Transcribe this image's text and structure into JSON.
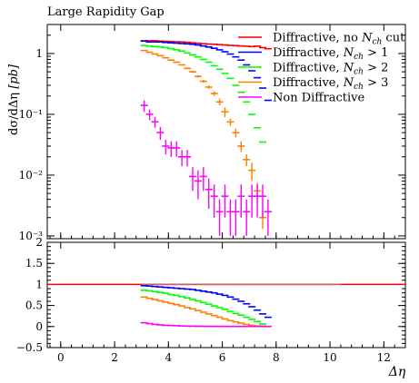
{
  "chart_data": {
    "type": "scatter",
    "title": "Large Rapidity Gap",
    "xlabel": "Δη",
    "ylabel": "dσ/dΔη [pb]",
    "xlim": [
      -0.5,
      12.8
    ],
    "ylim": [
      0.0009,
      3.0
    ],
    "yscale": "log",
    "grid": false,
    "legend_position": "top-right",
    "x_ticks": [
      "0",
      "2",
      "4",
      "6",
      "8",
      "10",
      "12"
    ],
    "x_tick_values": [
      0,
      2,
      4,
      6,
      8,
      10,
      12
    ],
    "y_ticks": [
      "10⁻³",
      "10⁻²",
      "10⁻¹",
      "1"
    ],
    "y_tick_values": [
      0.001,
      0.01,
      0.1,
      1
    ],
    "series": [
      {
        "name": "Diffractive, no N_ch cut",
        "legend": [
          "Diffractive, no ",
          "N",
          "ch",
          " cut"
        ],
        "color": "#ff0000",
        "x": [
          3.1,
          3.3,
          3.5,
          3.7,
          3.9,
          4.1,
          4.3,
          4.5,
          4.7,
          4.9,
          5.1,
          5.3,
          5.5,
          5.7,
          5.9,
          6.1,
          6.3,
          6.5,
          6.7,
          6.9,
          7.1,
          7.3,
          7.5,
          7.7
        ],
        "y": [
          1.62,
          1.62,
          1.62,
          1.6,
          1.58,
          1.57,
          1.56,
          1.55,
          1.53,
          1.5,
          1.47,
          1.45,
          1.43,
          1.42,
          1.4,
          1.38,
          1.36,
          1.35,
          1.33,
          1.32,
          1.3,
          1.32,
          1.25,
          1.2
        ],
        "yerr": []
      },
      {
        "name": "Diffractive, N_ch > 1",
        "legend": [
          "Diffractive, ",
          "N",
          "ch",
          " > 1"
        ],
        "color": "#0000ff",
        "x": [
          3.1,
          3.3,
          3.5,
          3.7,
          3.9,
          4.1,
          4.3,
          4.5,
          4.7,
          4.9,
          5.1,
          5.3,
          5.5,
          5.7,
          5.9,
          6.1,
          6.3,
          6.5,
          6.7,
          6.9,
          7.1,
          7.3,
          7.5,
          7.7
        ],
        "y": [
          1.6,
          1.55,
          1.55,
          1.55,
          1.52,
          1.5,
          1.48,
          1.46,
          1.44,
          1.42,
          1.38,
          1.33,
          1.28,
          1.22,
          1.15,
          1.07,
          0.98,
          0.88,
          0.78,
          0.65,
          0.52,
          0.4,
          0.27,
          0.17
        ],
        "yerr": []
      },
      {
        "name": "Diffractive, N_ch > 2",
        "legend": [
          "Diffractive, ",
          "N",
          "ch",
          " > 2"
        ],
        "color": "#00ff00",
        "x": [
          3.1,
          3.3,
          3.5,
          3.7,
          3.9,
          4.1,
          4.3,
          4.5,
          4.7,
          4.9,
          5.1,
          5.3,
          5.5,
          5.7,
          5.9,
          6.1,
          6.3,
          6.5,
          6.7,
          6.9,
          7.1,
          7.3,
          7.5
        ],
        "y": [
          1.35,
          1.32,
          1.3,
          1.28,
          1.25,
          1.2,
          1.15,
          1.1,
          1.02,
          0.95,
          0.88,
          0.8,
          0.72,
          0.63,
          0.55,
          0.47,
          0.39,
          0.3,
          0.23,
          0.16,
          0.1,
          0.06,
          0.035
        ],
        "yerr": []
      },
      {
        "name": "Diffractive, N_ch > 3",
        "legend": [
          "Diffractive, ",
          "N",
          "ch",
          " > 3"
        ],
        "color": "#ff8000",
        "x": [
          3.1,
          3.3,
          3.5,
          3.7,
          3.9,
          4.1,
          4.3,
          4.5,
          4.7,
          4.9,
          5.1,
          5.3,
          5.5,
          5.7,
          5.9,
          6.1,
          6.3,
          6.5,
          6.7,
          6.9,
          7.1,
          7.3,
          7.5
        ],
        "y": [
          1.12,
          1.05,
          0.98,
          0.92,
          0.85,
          0.78,
          0.72,
          0.65,
          0.57,
          0.5,
          0.42,
          0.35,
          0.28,
          0.22,
          0.16,
          0.11,
          0.075,
          0.05,
          0.03,
          0.018,
          0.012,
          0.0055,
          0.002
        ],
        "yerr": [
          0.02,
          0.02,
          0.02,
          0.02,
          0.02,
          0.02,
          0.02,
          0.02,
          0.02,
          0.02,
          0.02,
          0.02,
          0.02,
          0.02,
          0.02,
          0.02,
          0.01,
          0.008,
          0.006,
          0.004,
          0.004,
          0.002,
          0.0007
        ]
      },
      {
        "name": "Non Diffractive",
        "legend": [
          "Non Diffractive"
        ],
        "color": "#ff00ff",
        "x": [
          3.1,
          3.3,
          3.5,
          3.7,
          3.9,
          4.1,
          4.3,
          4.5,
          4.7,
          4.9,
          5.1,
          5.3,
          5.5,
          5.7,
          5.9,
          6.1,
          6.3,
          6.5,
          6.7,
          6.9,
          7.1,
          7.3,
          7.5,
          7.7
        ],
        "y": [
          0.14,
          0.1,
          0.075,
          0.05,
          0.03,
          0.028,
          0.028,
          0.02,
          0.02,
          0.0095,
          0.008,
          0.0095,
          0.0058,
          0.0045,
          0.0025,
          0.0045,
          0.0025,
          0.0025,
          0.0045,
          0.0025,
          0.0045,
          0.0045,
          0.0045,
          0.0025
        ],
        "yerr": [
          0.03,
          0.02,
          0.015,
          0.012,
          0.008,
          0.008,
          0.008,
          0.006,
          0.006,
          0.004,
          0.004,
          0.004,
          0.003,
          0.0025,
          0.0015,
          0.0025,
          0.0015,
          0.0015,
          0.0025,
          0.0015,
          0.0025,
          0.0025,
          0.0025,
          0.0015
        ]
      }
    ],
    "ratio_panel": {
      "ylim": [
        -0.5,
        2.0
      ],
      "y_ticks": [
        "−0.5",
        "0",
        "0.5",
        "1",
        "1.5",
        "2"
      ],
      "y_tick_values": [
        -0.5,
        0,
        0.5,
        1,
        1.5,
        2
      ],
      "reference_x": [
        -0.5,
        12.8
      ],
      "reference_color": "#ff0000",
      "series": [
        {
          "color": "#0000ff",
          "x": [
            3.1,
            3.3,
            3.5,
            3.7,
            3.9,
            4.1,
            4.3,
            4.5,
            4.7,
            4.9,
            5.1,
            5.3,
            5.5,
            5.7,
            5.9,
            6.1,
            6.3,
            6.5,
            6.7,
            6.9,
            7.1,
            7.3,
            7.5,
            7.7
          ],
          "y": [
            0.97,
            0.96,
            0.95,
            0.94,
            0.93,
            0.92,
            0.91,
            0.9,
            0.89,
            0.88,
            0.86,
            0.84,
            0.82,
            0.8,
            0.77,
            0.74,
            0.7,
            0.65,
            0.6,
            0.54,
            0.47,
            0.39,
            0.3,
            0.22
          ]
        },
        {
          "color": "#00ff00",
          "x": [
            3.1,
            3.3,
            3.5,
            3.7,
            3.9,
            4.1,
            4.3,
            4.5,
            4.7,
            4.9,
            5.1,
            5.3,
            5.5,
            5.7,
            5.9,
            6.1,
            6.3,
            6.5,
            6.7,
            6.9,
            7.1,
            7.3,
            7.5
          ],
          "y": [
            0.86,
            0.85,
            0.83,
            0.81,
            0.79,
            0.76,
            0.74,
            0.71,
            0.68,
            0.64,
            0.61,
            0.57,
            0.53,
            0.49,
            0.45,
            0.41,
            0.36,
            0.31,
            0.27,
            0.22,
            0.17,
            0.12,
            0.06
          ]
        },
        {
          "color": "#ff8000",
          "x": [
            3.1,
            3.3,
            3.5,
            3.7,
            3.9,
            4.1,
            4.3,
            4.5,
            4.7,
            4.9,
            5.1,
            5.3,
            5.5,
            5.7,
            5.9,
            6.1,
            6.3,
            6.5,
            6.7,
            6.9,
            7.1,
            7.3,
            7.5,
            7.7
          ],
          "y": [
            0.7,
            0.67,
            0.64,
            0.61,
            0.58,
            0.55,
            0.52,
            0.49,
            0.45,
            0.42,
            0.38,
            0.34,
            0.3,
            0.26,
            0.22,
            0.18,
            0.14,
            0.11,
            0.08,
            0.05,
            0.03,
            0.015,
            0.01,
            0.0
          ]
        },
        {
          "color": "#ff00ff",
          "x": [
            3.1,
            3.3,
            3.5,
            3.7,
            3.9,
            4.1,
            4.3,
            4.5,
            4.7,
            4.9,
            5.1,
            5.3,
            5.5,
            5.7,
            5.9,
            6.1,
            6.3,
            6.5,
            6.7,
            6.9,
            7.1,
            7.3,
            7.5,
            7.7
          ],
          "y": [
            0.09,
            0.07,
            0.05,
            0.04,
            0.03,
            0.025,
            0.02,
            0.015,
            0.01,
            0.008,
            0.006,
            0.005,
            0.004,
            0.004,
            0.003,
            0.003,
            0.002,
            0.002,
            0.002,
            0.002,
            0.002,
            0.002,
            0.002,
            0.002
          ]
        }
      ]
    }
  }
}
